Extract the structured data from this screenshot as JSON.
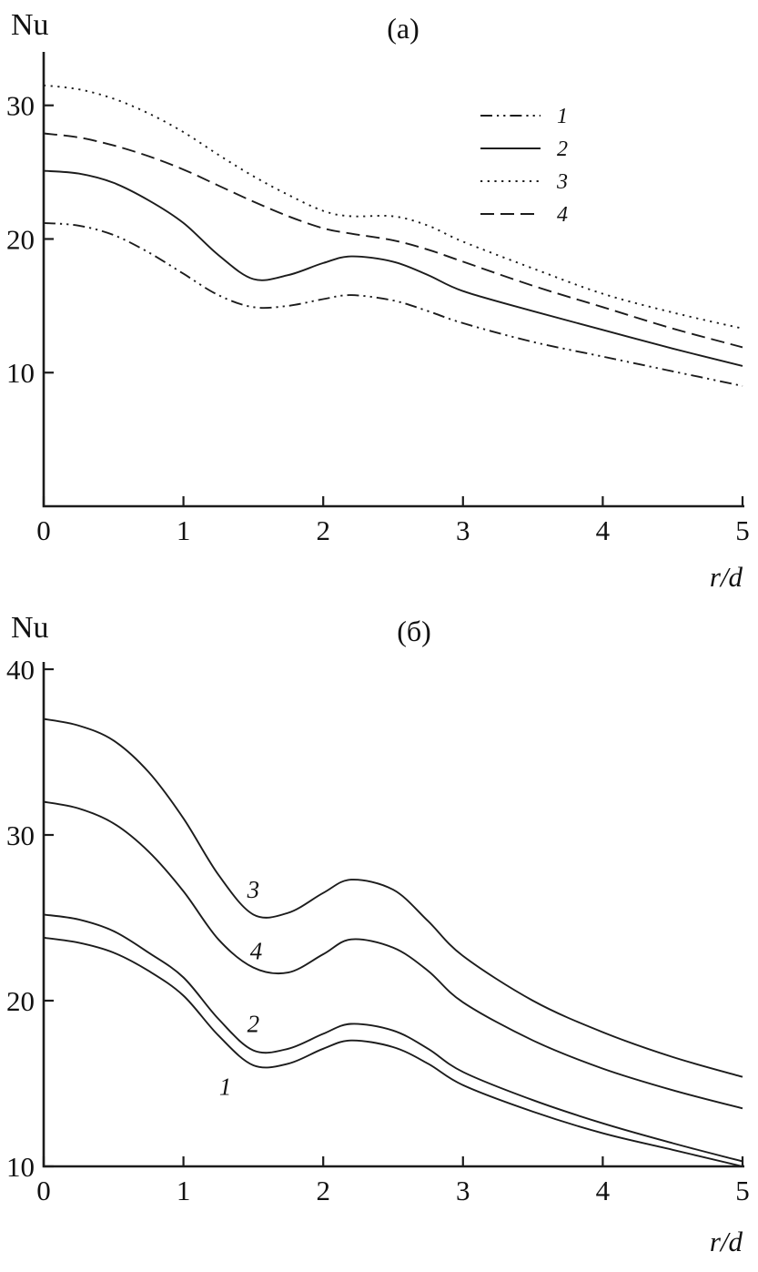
{
  "chart_data": [
    {
      "type": "line",
      "title": "(а)",
      "ylabel": "Nu",
      "xlabel": "r/d",
      "xlim": [
        0,
        5
      ],
      "ylim": [
        0,
        34
      ],
      "x_ticks": [
        0,
        1,
        2,
        3,
        4,
        5
      ],
      "y_ticks": [
        10,
        20,
        30
      ],
      "grid": false,
      "x": [
        0,
        0.25,
        0.5,
        0.75,
        1,
        1.25,
        1.5,
        1.75,
        2,
        2.2,
        2.5,
        2.75,
        3,
        3.5,
        4,
        4.5,
        5
      ],
      "series": [
        {
          "name": "1",
          "line_style": "dash-dot-dot",
          "values": [
            21.2,
            21.0,
            20.3,
            19.0,
            17.4,
            15.8,
            14.9,
            15.0,
            15.5,
            15.8,
            15.4,
            14.6,
            13.7,
            12.3,
            11.2,
            10.1,
            9.0
          ]
        },
        {
          "name": "2",
          "line_style": "solid",
          "values": [
            25.1,
            24.9,
            24.2,
            22.9,
            21.2,
            18.8,
            17.0,
            17.3,
            18.2,
            18.7,
            18.3,
            17.3,
            16.1,
            14.6,
            13.2,
            11.8,
            10.5
          ]
        },
        {
          "name": "3",
          "line_style": "dotted",
          "values": [
            31.5,
            31.2,
            30.5,
            29.4,
            28.0,
            26.3,
            24.7,
            23.3,
            22.1,
            21.7,
            21.7,
            21.0,
            19.8,
            17.8,
            15.9,
            14.5,
            13.3
          ]
        },
        {
          "name": "4",
          "line_style": "dashed",
          "values": [
            27.9,
            27.6,
            27.0,
            26.2,
            25.2,
            24.0,
            22.8,
            21.7,
            20.8,
            20.4,
            19.9,
            19.2,
            18.3,
            16.5,
            14.9,
            13.3,
            11.9
          ]
        }
      ],
      "legend": {
        "position": "upper-right",
        "entries": [
          {
            "label": "1",
            "line_style": "dash-dot-dot"
          },
          {
            "label": "2",
            "line_style": "solid"
          },
          {
            "label": "3",
            "line_style": "dotted"
          },
          {
            "label": "4",
            "line_style": "dashed"
          }
        ]
      },
      "curve_labels": []
    },
    {
      "type": "line",
      "title": "(б)",
      "ylabel": "Nu",
      "xlabel": "r/d",
      "xlim": [
        0,
        5
      ],
      "ylim": [
        10,
        40
      ],
      "x_ticks": [
        0,
        1,
        2,
        3,
        4,
        5
      ],
      "y_ticks": [
        10,
        20,
        30,
        40
      ],
      "grid": false,
      "x": [
        0,
        0.25,
        0.5,
        0.75,
        1,
        1.25,
        1.5,
        1.75,
        2,
        2.2,
        2.5,
        2.75,
        3,
        3.5,
        4,
        4.5,
        5
      ],
      "series": [
        {
          "name": "3",
          "line_style": "solid",
          "values": [
            37.0,
            36.6,
            35.7,
            33.8,
            31.0,
            27.6,
            25.2,
            25.3,
            26.5,
            27.3,
            26.7,
            24.8,
            22.7,
            20.0,
            18.1,
            16.6,
            15.4
          ]
        },
        {
          "name": "4",
          "line_style": "solid",
          "values": [
            32.0,
            31.6,
            30.7,
            29.0,
            26.6,
            23.7,
            22.0,
            21.7,
            22.8,
            23.7,
            23.2,
            21.8,
            19.9,
            17.6,
            15.9,
            14.6,
            13.5
          ]
        },
        {
          "name": "2",
          "line_style": "solid",
          "values": [
            25.2,
            24.9,
            24.2,
            22.9,
            21.4,
            18.9,
            17.0,
            17.1,
            18.0,
            18.6,
            18.2,
            17.1,
            15.7,
            14.0,
            12.6,
            11.4,
            10.3
          ]
        },
        {
          "name": "1",
          "line_style": "solid",
          "values": [
            23.8,
            23.5,
            22.9,
            21.8,
            20.3,
            17.9,
            16.1,
            16.2,
            17.1,
            17.6,
            17.2,
            16.2,
            14.9,
            13.3,
            12.0,
            11.0,
            10.0
          ]
        }
      ],
      "legend": null,
      "curve_labels": [
        {
          "text": "3",
          "x": 1.5,
          "y": 26.2
        },
        {
          "text": "4",
          "x": 1.52,
          "y": 22.5
        },
        {
          "text": "2",
          "x": 1.5,
          "y": 18.1
        },
        {
          "text": "1",
          "x": 1.3,
          "y": 14.3
        }
      ]
    }
  ]
}
